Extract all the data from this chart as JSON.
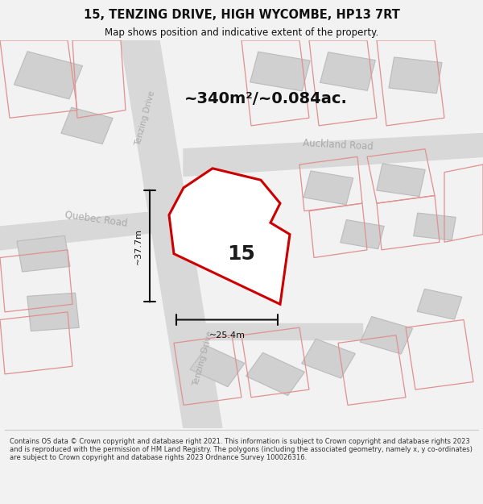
{
  "title_line1": "15, TENZING DRIVE, HIGH WYCOMBE, HP13 7RT",
  "title_line2": "Map shows position and indicative extent of the property.",
  "area_text": "~340m²/~0.084ac.",
  "label_15": "15",
  "label_height": "~37.7m",
  "label_width": "~25.4m",
  "road_auckland": "Auckland Road",
  "road_quebec": "Quebec Road",
  "road_tenzing1": "Tenzing Drive",
  "road_tenzing2": "Tenzing Drive",
  "footer": "Contains OS data © Crown copyright and database right 2021. This information is subject to Crown copyright and database rights 2023 and is reproduced with the permission of HM Land Registry. The polygons (including the associated geometry, namely x, y co-ordinates) are subject to Crown copyright and database rights 2023 Ordnance Survey 100026316.",
  "bg_color": "#f2f2f2",
  "map_bg": "#f8f8f8",
  "road_color": "#d8d8d8",
  "building_fill": "#d0d0d0",
  "building_stroke": "#bbbbbb",
  "property_stroke": "#cc0000",
  "pink_stroke": "#e09090",
  "dim_line_color": "#111111",
  "text_dark": "#111111",
  "text_gray": "#aaaaaa",
  "footer_color": "#333333"
}
